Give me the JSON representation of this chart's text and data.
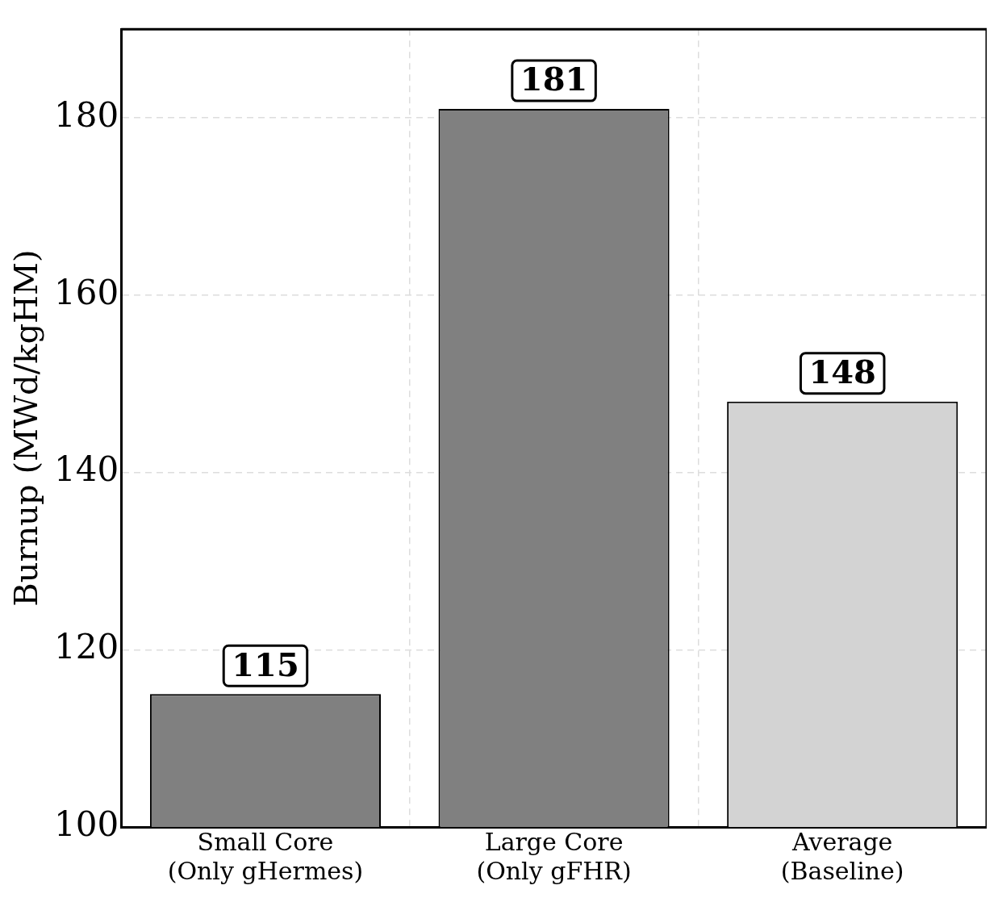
{
  "chart_data": {
    "type": "bar",
    "ylabel": "Burnup (MWd/kgHM)",
    "categories": [
      "Small Core\n(Only gHermes)",
      "Large Core\n(Only gFHR)",
      "Average\n(Baseline)"
    ],
    "values": [
      115,
      181,
      148
    ],
    "colors": [
      "#808080",
      "#808080",
      "#d3d3d3"
    ],
    "ylim": [
      100,
      190
    ],
    "yticks": [
      100,
      120,
      140,
      160,
      180
    ],
    "grid": true,
    "data_labels": true,
    "legend": false
  }
}
